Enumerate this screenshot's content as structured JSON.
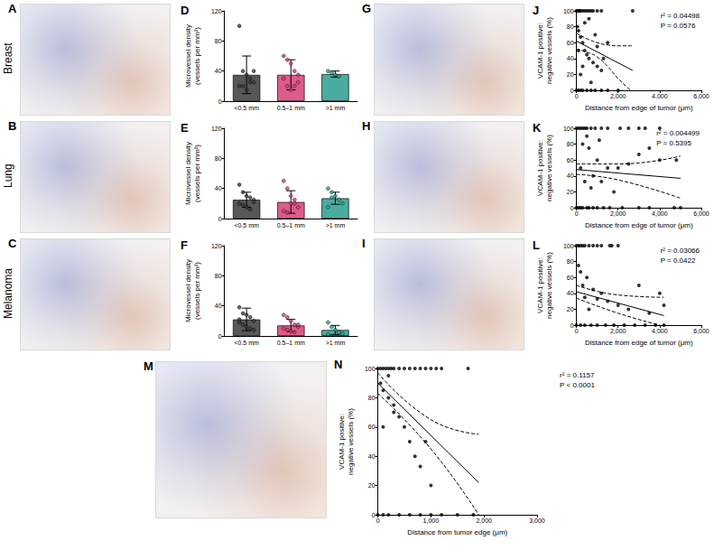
{
  "row_labels": [
    "Breast",
    "Lung",
    "Melanoma"
  ],
  "image_panels": [
    "A",
    "B",
    "C",
    "G",
    "H",
    "I",
    "M"
  ],
  "chart_data": [
    {
      "type": "bar",
      "title": "D",
      "categories": [
        "<0.5 mm",
        "0.5–1 mm",
        ">1 mm"
      ],
      "values": [
        35,
        35,
        36
      ],
      "errors": [
        25,
        20,
        4
      ],
      "points": [
        [
          100,
          40,
          35,
          30,
          25,
          20,
          20,
          15,
          25,
          40
        ],
        [
          60,
          55,
          50,
          40,
          35,
          30,
          20,
          15,
          20,
          25
        ],
        [
          40,
          38,
          35,
          33
        ]
      ],
      "colors": [
        "#3a3a3a",
        "#d63f78",
        "#2a9d8f"
      ],
      "ylim": [
        0,
        120
      ],
      "yticks": [
        0,
        40,
        80,
        120
      ],
      "ylabel": "Microvessel density\n(vessels per mm²)"
    },
    {
      "type": "bar",
      "title": "E",
      "categories": [
        "<0.5 mm",
        "0.5–1 mm",
        ">1 mm"
      ],
      "values": [
        25,
        22,
        27
      ],
      "errors": [
        10,
        15,
        8
      ],
      "points": [
        [
          45,
          35,
          30,
          28,
          25,
          20,
          18,
          15,
          12,
          22
        ],
        [
          50,
          40,
          30,
          20,
          15,
          10,
          8,
          20,
          25
        ],
        [
          40,
          35,
          30,
          25,
          20,
          15,
          28
        ]
      ],
      "colors": [
        "#3a3a3a",
        "#d63f78",
        "#2a9d8f"
      ],
      "ylim": [
        0,
        120
      ],
      "yticks": [
        0,
        40,
        80,
        120
      ],
      "ylabel": "Microvessel density\n(vessels per mm²)"
    },
    {
      "type": "bar",
      "title": "F",
      "categories": [
        "<0.5 mm",
        "0.5–1 mm",
        ">1 mm"
      ],
      "values": [
        22,
        14,
        8
      ],
      "errors": [
        15,
        8,
        6
      ],
      "points": [
        [
          38,
          30,
          28,
          25,
          20,
          18,
          15,
          12,
          10,
          8,
          22
        ],
        [
          28,
          25,
          20,
          15,
          12,
          10,
          8,
          6,
          5,
          15
        ],
        [
          18,
          12,
          8,
          5,
          3,
          2
        ]
      ],
      "colors": [
        "#3a3a3a",
        "#d63f78",
        "#2a9d8f"
      ],
      "ylim": [
        0,
        120
      ],
      "yticks": [
        0,
        40,
        80,
        120
      ],
      "ylabel": "Microvessel density\n(vessels per mm²)"
    },
    {
      "type": "scatter",
      "title": "J",
      "color": "#000000",
      "x": [
        0,
        50,
        100,
        150,
        200,
        300,
        400,
        500,
        600,
        700,
        800,
        1000,
        1200,
        2700,
        0,
        100,
        200,
        300,
        500,
        700,
        900,
        1200,
        1500,
        2000,
        50,
        100,
        200,
        300,
        400,
        500,
        600,
        800,
        1000,
        1200,
        1500,
        1000,
        300,
        200,
        700,
        400,
        600,
        100,
        900,
        1300
      ],
      "values": [
        100,
        100,
        100,
        100,
        100,
        100,
        100,
        100,
        100,
        100,
        100,
        100,
        100,
        100,
        0,
        0,
        0,
        0,
        0,
        0,
        0,
        0,
        0,
        0,
        80,
        75,
        67,
        60,
        50,
        45,
        40,
        35,
        30,
        25,
        60,
        55,
        30,
        20,
        10,
        85,
        90,
        50,
        70,
        40
      ],
      "fit": {
        "x": [
          0,
          2700
        ],
        "y": [
          62,
          25
        ]
      },
      "ci_upper": {
        "x": [
          0,
          500,
          1000,
          1500,
          2000,
          2700
        ],
        "y": [
          72,
          65,
          60,
          57,
          56,
          56
        ]
      },
      "ci_lower": {
        "x": [
          0,
          500,
          1000,
          1500,
          2000,
          2600
        ],
        "y": [
          52,
          48,
          42,
          30,
          15,
          0
        ]
      },
      "xlim": [
        0,
        6000
      ],
      "xticks": [
        0,
        {
          "value": 2000,
          "label": "2,000"
        },
        {
          "value": 4000,
          "label": "4,000"
        },
        {
          "value": 6000,
          "label": "6,000"
        }
      ],
      "ylim": [
        0,
        100
      ],
      "yticks": [
        0,
        20,
        40,
        60,
        80,
        100
      ],
      "xlabel": "Distance from edge of tumor (μm)",
      "ylabel": "VCAM-1 positive:\nnegative vessels (%)",
      "annotations": [
        "r² = 0.04498",
        "P = 0.0576"
      ]
    },
    {
      "type": "scatter",
      "title": "K",
      "color": "#000000",
      "x": [
        0,
        100,
        200,
        300,
        400,
        500,
        700,
        900,
        1200,
        1500,
        2100,
        2500,
        3000,
        3300,
        4000,
        0,
        100,
        200,
        300,
        500,
        600,
        800,
        1000,
        1300,
        1600,
        2200,
        3000,
        3500,
        4700,
        5000,
        300,
        600,
        1000,
        1500,
        2000,
        800,
        400,
        1200,
        2500,
        3000,
        4000,
        200,
        700,
        1800,
        3500,
        4800,
        500,
        1100
      ],
      "values": [
        100,
        100,
        100,
        100,
        100,
        100,
        100,
        100,
        100,
        100,
        100,
        100,
        100,
        100,
        100,
        0,
        0,
        0,
        0,
        0,
        0,
        0,
        0,
        0,
        0,
        0,
        0,
        0,
        0,
        0,
        80,
        75,
        60,
        50,
        50,
        40,
        33,
        33,
        55,
        67,
        60,
        50,
        25,
        20,
        75,
        60,
        90,
        85
      ],
      "fit": {
        "x": [
          0,
          5000
        ],
        "y": [
          48,
          37
        ]
      },
      "ci_upper": {
        "x": [
          0,
          2000,
          5000
        ],
        "y": [
          55,
          55,
          65
        ]
      },
      "ci_lower": {
        "x": [
          0,
          2000,
          5000
        ],
        "y": [
          42,
          35,
          12
        ]
      },
      "xlim": [
        0,
        6000
      ],
      "xticks": [
        0,
        {
          "value": 2000,
          "label": "2,000"
        },
        {
          "value": 4000,
          "label": "4,000"
        },
        {
          "value": 6000,
          "label": "6,000"
        }
      ],
      "ylim": [
        0,
        100
      ],
      "yticks": [
        0,
        20,
        40,
        60,
        80,
        100
      ],
      "xlabel": "Distance from edge of tumor (μm)",
      "ylabel": "VCAM-1 positive:\nnegative vessels (%)",
      "annotations": [
        "r² = 0.004499",
        "P = 0.5395"
      ]
    },
    {
      "type": "scatter",
      "title": "L",
      "color": "#000000",
      "x": [
        0,
        100,
        200,
        300,
        400,
        600,
        800,
        1000,
        1200,
        1600,
        1700,
        2000,
        0,
        200,
        400,
        700,
        1000,
        1400,
        1800,
        2300,
        2800,
        3300,
        3800,
        4200,
        100,
        200,
        300,
        500,
        800,
        1000,
        1200,
        1500,
        2000,
        3000,
        4000,
        600,
        400,
        2500,
        3500,
        4200
      ],
      "values": [
        100,
        100,
        100,
        100,
        100,
        100,
        100,
        100,
        100,
        100,
        100,
        100,
        0,
        0,
        0,
        0,
        0,
        0,
        0,
        0,
        0,
        0,
        0,
        0,
        75,
        67,
        50,
        60,
        45,
        33,
        40,
        30,
        25,
        50,
        40,
        20,
        35,
        20,
        15,
        25
      ],
      "fit": {
        "x": [
          0,
          4200
        ],
        "y": [
          42,
          12
        ]
      },
      "ci_upper": {
        "x": [
          0,
          2000,
          4200
        ],
        "y": [
          50,
          38,
          35
        ]
      },
      "ci_lower": {
        "x": [
          0,
          2000,
          4000
        ],
        "y": [
          34,
          15,
          0
        ]
      },
      "xlim": [
        0,
        6000
      ],
      "xticks": [
        0,
        {
          "value": 2000,
          "label": "2,000"
        },
        {
          "value": 4000,
          "label": "4,000"
        },
        {
          "value": 6000,
          "label": "6,000"
        }
      ],
      "ylim": [
        0,
        100
      ],
      "yticks": [
        0,
        20,
        40,
        60,
        80,
        100
      ],
      "xlabel": "Distance from edge of tumor (μm)",
      "ylabel": "VCAM-1 positive:\nnegative vessels (%)",
      "annotations": [
        "r² = 0.03066",
        "P = 0.0422"
      ]
    },
    {
      "type": "scatter",
      "title": "N",
      "color": "#000000",
      "x": [
        0,
        50,
        100,
        150,
        200,
        250,
        300,
        400,
        500,
        600,
        700,
        800,
        900,
        1000,
        1100,
        1200,
        0,
        100,
        200,
        400,
        600,
        800,
        1000,
        1200,
        1500,
        1800,
        50,
        100,
        200,
        300,
        400,
        500,
        600,
        700,
        100,
        200,
        800,
        1000,
        300,
        1700,
        900
      ],
      "values": [
        100,
        100,
        100,
        100,
        100,
        100,
        100,
        100,
        100,
        100,
        100,
        100,
        100,
        100,
        100,
        100,
        0,
        0,
        0,
        0,
        0,
        0,
        0,
        0,
        0,
        0,
        90,
        85,
        80,
        75,
        67,
        60,
        50,
        40,
        60,
        95,
        33,
        20,
        70,
        100,
        50
      ],
      "fit": {
        "x": [
          0,
          1900
        ],
        "y": [
          90,
          22
        ]
      },
      "ci_upper": {
        "x": [
          0,
          1000,
          1900
        ],
        "y": [
          97,
          65,
          55
        ]
      },
      "ci_lower": {
        "x": [
          0,
          1000,
          1900
        ],
        "y": [
          83,
          45,
          0
        ]
      },
      "xlim": [
        0,
        3000
      ],
      "xticks": [
        0,
        {
          "value": 1000,
          "label": "1,000"
        },
        {
          "value": 2000,
          "label": "2,000"
        },
        {
          "value": 3000,
          "label": "3,000"
        }
      ],
      "ylim": [
        0,
        100
      ],
      "yticks": [
        0,
        20,
        40,
        60,
        80,
        100
      ],
      "xlabel": "Distance from tumor edge (μm)",
      "ylabel": "VCAM-1 positive:\nnegative vessels (%)",
      "annotations": [
        "r² = 0.1157",
        "P < 0.0001"
      ]
    }
  ]
}
